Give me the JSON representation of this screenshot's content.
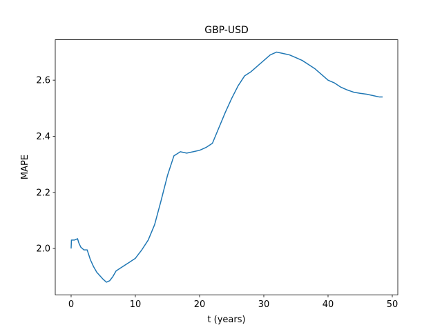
{
  "chart_data": {
    "type": "line",
    "title": "GBP-USD",
    "x_label": "t (years)",
    "y_label": "MAPE",
    "x": [
      0,
      0.05,
      0.5,
      1,
      1.2,
      1.5,
      2,
      2.5,
      3,
      3.5,
      4,
      5,
      5.5,
      6,
      6.5,
      7,
      8,
      9,
      10,
      11,
      12,
      13,
      14,
      15,
      16,
      17,
      18,
      19,
      20,
      21,
      22,
      23,
      24,
      25,
      26,
      27,
      28,
      29,
      30,
      31,
      32,
      33,
      34,
      35,
      36,
      37,
      38,
      39,
      40,
      41,
      42,
      43,
      44,
      45,
      46,
      47,
      48,
      48.5
    ],
    "series": [
      {
        "name": "MAPE",
        "color": "#1f77b4",
        "values": [
          2.0,
          2.03,
          2.03,
          2.035,
          2.02,
          2.005,
          1.995,
          1.995,
          1.96,
          1.935,
          1.915,
          1.89,
          1.88,
          1.885,
          1.9,
          1.92,
          1.935,
          1.95,
          1.965,
          1.995,
          2.03,
          2.085,
          2.17,
          2.26,
          2.33,
          2.345,
          2.34,
          2.345,
          2.35,
          2.36,
          2.375,
          2.43,
          2.485,
          2.535,
          2.58,
          2.615,
          2.63,
          2.65,
          2.67,
          2.69,
          2.7,
          2.695,
          2.69,
          2.68,
          2.67,
          2.655,
          2.64,
          2.62,
          2.6,
          2.59,
          2.575,
          2.565,
          2.557,
          2.553,
          2.55,
          2.545,
          2.54,
          2.54
        ]
      }
    ],
    "xlim": [
      -2.47,
      50.86
    ],
    "ylim": [
      1.835,
      2.744
    ],
    "xticks": [
      0,
      10,
      20,
      30,
      40,
      50
    ],
    "yticks": [
      {
        "value": 2,
        "label": "2.0"
      },
      2.2,
      2.4,
      2.6
    ],
    "grid": false
  }
}
